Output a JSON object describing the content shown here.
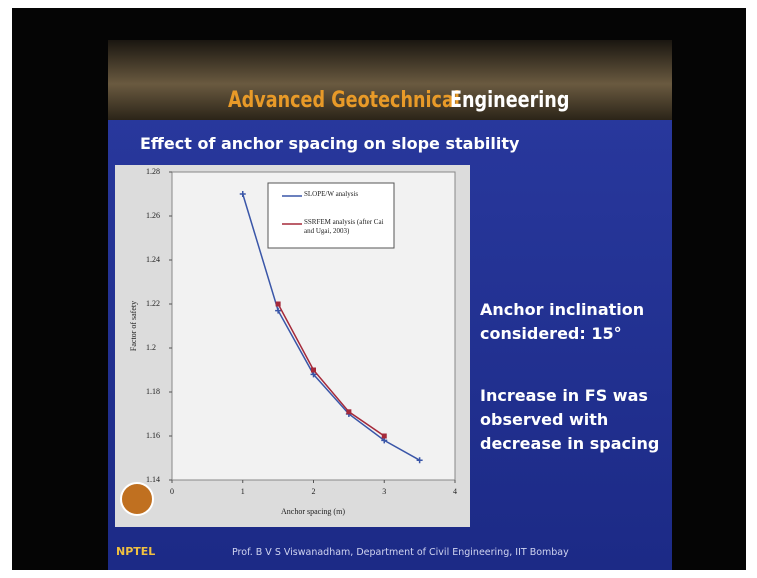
{
  "slide": {
    "banner_title_a": "Advanced Geotechnical",
    "banner_title_b": "Engineering",
    "heading": "Effect of anchor spacing on slope stability",
    "notes": [
      "Anchor inclination considered: 15°",
      "Increase in FS was observed with decrease in spacing"
    ],
    "footer_logo": "NPTEL",
    "footer": "Prof. B V S Viswanadham, Department of Civil Engineering, IIT Bombay"
  },
  "chart_data": {
    "type": "line",
    "x_label": "Anchor spacing (m)",
    "y_label": "Factor of safety",
    "xlim": [
      0,
      4
    ],
    "xticks": [
      0,
      1,
      2,
      3,
      4
    ],
    "ylim": [
      1.14,
      1.28
    ],
    "yticks": [
      1.14,
      1.16,
      1.18,
      1.2,
      1.22,
      1.24,
      1.26,
      1.28
    ],
    "series": [
      {
        "name": "SLOPE/W analysis",
        "color": "#3a56a8",
        "marker": "plus",
        "x": [
          1,
          1.5,
          2,
          2.5,
          3,
          3.5
        ],
        "values": [
          1.27,
          1.217,
          1.188,
          1.17,
          1.158,
          1.149
        ]
      },
      {
        "name": "SSRFEM analysis (after Cai and Ugai, 2003)",
        "color": "#a52a3a",
        "marker": "square",
        "x": [
          1.5,
          2,
          2.5,
          3
        ],
        "values": [
          1.22,
          1.19,
          1.171,
          1.16
        ]
      }
    ]
  }
}
